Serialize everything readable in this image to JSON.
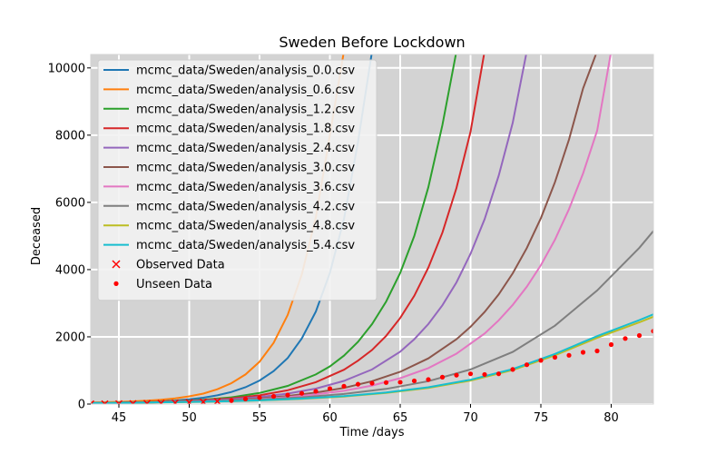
{
  "chart_data": {
    "type": "line",
    "title": "Sweden Before Lockdown",
    "xlabel": "Time /days",
    "ylabel": "Deceased",
    "xlim": [
      43,
      83
    ],
    "ylim": [
      0,
      10400
    ],
    "xticks": [
      45,
      50,
      55,
      60,
      65,
      70,
      75,
      80
    ],
    "yticks": [
      0,
      2000,
      4000,
      6000,
      8000,
      10000
    ],
    "grid": true,
    "legend_position": "upper-left",
    "background_color": "#d3d3d3",
    "series": [
      {
        "name": "mcmc_data/Sweden/analysis_0.0.csv",
        "color": "#1f77b4",
        "x": [
          43,
          44,
          45,
          46,
          47,
          48,
          49,
          50,
          51,
          52,
          53,
          54,
          55,
          56,
          57,
          58,
          59,
          60,
          61,
          62,
          63
        ],
        "y": [
          40,
          45,
          50,
          60,
          70,
          85,
          105,
          140,
          190,
          260,
          360,
          500,
          700,
          980,
          1370,
          1950,
          2750,
          3900,
          5500,
          7800,
          10500
        ]
      },
      {
        "name": "mcmc_data/Sweden/analysis_0.6.csv",
        "color": "#ff7f0e",
        "x": [
          43,
          44,
          45,
          46,
          47,
          48,
          49,
          50,
          51,
          52,
          53,
          54,
          55,
          56,
          57,
          58,
          59,
          60,
          61
        ],
        "y": [
          45,
          55,
          65,
          80,
          100,
          130,
          170,
          230,
          310,
          440,
          620,
          880,
          1260,
          1820,
          2650,
          3850,
          5550,
          8000,
          10500
        ]
      },
      {
        "name": "mcmc_data/Sweden/analysis_1.2.csv",
        "color": "#2ca02c",
        "x": [
          43,
          45,
          47,
          49,
          51,
          53,
          55,
          57,
          59,
          60,
          61,
          62,
          63,
          64,
          65,
          66,
          67,
          68,
          69
        ],
        "y": [
          30,
          45,
          60,
          90,
          130,
          200,
          330,
          540,
          880,
          1120,
          1440,
          1850,
          2380,
          3050,
          3900,
          5000,
          6450,
          8300,
          10500
        ]
      },
      {
        "name": "mcmc_data/Sweden/analysis_1.8.csv",
        "color": "#d62728",
        "x": [
          43,
          45,
          47,
          49,
          51,
          53,
          55,
          57,
          59,
          61,
          62,
          63,
          64,
          65,
          66,
          67,
          68,
          69,
          70,
          71
        ],
        "y": [
          30,
          42,
          56,
          80,
          115,
          170,
          260,
          410,
          650,
          1020,
          1290,
          1610,
          2030,
          2560,
          3220,
          4060,
          5100,
          6430,
          8100,
          10500
        ]
      },
      {
        "name": "mcmc_data/Sweden/analysis_2.4.csv",
        "color": "#9467bd",
        "x": [
          43,
          45,
          47,
          49,
          51,
          53,
          55,
          57,
          59,
          61,
          63,
          65,
          66,
          67,
          68,
          69,
          70,
          71,
          72,
          73,
          74
        ],
        "y": [
          30,
          40,
          52,
          72,
          100,
          145,
          210,
          310,
          460,
          690,
          1030,
          1560,
          1930,
          2380,
          2940,
          3620,
          4470,
          5500,
          6790,
          8370,
          10500
        ]
      },
      {
        "name": "mcmc_data/Sweden/analysis_3.0.csv",
        "color": "#8c564b",
        "x": [
          43,
          45,
          47,
          49,
          51,
          53,
          55,
          57,
          59,
          61,
          63,
          65,
          67,
          69,
          70,
          71,
          72,
          73,
          74,
          75,
          76,
          77,
          78,
          79
        ],
        "y": [
          30,
          38,
          48,
          65,
          88,
          122,
          170,
          240,
          340,
          480,
          680,
          960,
          1360,
          1930,
          2300,
          2740,
          3260,
          3890,
          4640,
          5530,
          6600,
          7870,
          9390,
          10500
        ]
      },
      {
        "name": "mcmc_data/Sweden/analysis_3.6.csv",
        "color": "#e377c2",
        "x": [
          43,
          45,
          47,
          49,
          51,
          53,
          55,
          57,
          59,
          61,
          63,
          65,
          67,
          69,
          71,
          72,
          73,
          74,
          75,
          76,
          77,
          78,
          79,
          80
        ],
        "y": [
          30,
          37,
          46,
          60,
          80,
          108,
          148,
          205,
          285,
          395,
          550,
          770,
          1070,
          1500,
          2100,
          2490,
          2950,
          3490,
          4130,
          4890,
          5800,
          6860,
          8130,
          10500
        ]
      },
      {
        "name": "mcmc_data/Sweden/analysis_4.2.csv",
        "color": "#7f7f7f",
        "x": [
          43,
          46,
          49,
          52,
          55,
          58,
          61,
          64,
          67,
          70,
          73,
          76,
          79,
          82,
          83
        ],
        "y": [
          30,
          42,
          60,
          90,
          135,
          200,
          300,
          450,
          680,
          1030,
          1550,
          2330,
          3380,
          4650,
          5150
        ]
      },
      {
        "name": "mcmc_data/Sweden/analysis_4.8.csv",
        "color": "#bcbd22",
        "x": [
          43,
          46,
          49,
          52,
          55,
          58,
          61,
          64,
          67,
          70,
          73,
          76,
          79,
          82,
          83
        ],
        "y": [
          30,
          40,
          54,
          76,
          108,
          155,
          225,
          330,
          480,
          700,
          1010,
          1450,
          1970,
          2430,
          2600
        ]
      },
      {
        "name": "mcmc_data/Sweden/analysis_5.4.csv",
        "color": "#17becf",
        "x": [
          43,
          46,
          49,
          52,
          55,
          58,
          61,
          64,
          67,
          70,
          73,
          76,
          79,
          82,
          83
        ],
        "y": [
          30,
          41,
          56,
          79,
          112,
          162,
          235,
          345,
          500,
          725,
          1040,
          1490,
          2020,
          2500,
          2670
        ]
      }
    ],
    "observed": {
      "name": "Observed Data",
      "color": "#ff0000",
      "marker": "x",
      "x": [
        43,
        44,
        45,
        46,
        47,
        48,
        49,
        50,
        51,
        52
      ],
      "y": [
        5,
        7,
        10,
        13,
        18,
        25,
        33,
        45,
        60,
        80
      ]
    },
    "unseen": {
      "name": "Unseen Data",
      "color": "#ff0000",
      "marker": "dot",
      "x": [
        53,
        54,
        55,
        56,
        57,
        58,
        59,
        60,
        61,
        62,
        63,
        64,
        65,
        66,
        67,
        68,
        69,
        70,
        71,
        72,
        73,
        74,
        75,
        76,
        77,
        78,
        79,
        80,
        81,
        82,
        83
      ],
      "y": [
        105,
        150,
        190,
        230,
        270,
        320,
        380,
        460,
        530,
        590,
        620,
        640,
        650,
        690,
        730,
        800,
        860,
        900,
        880,
        900,
        1030,
        1170,
        1300,
        1390,
        1450,
        1540,
        1580,
        1770,
        1950,
        2040,
        2170
      ]
    }
  }
}
